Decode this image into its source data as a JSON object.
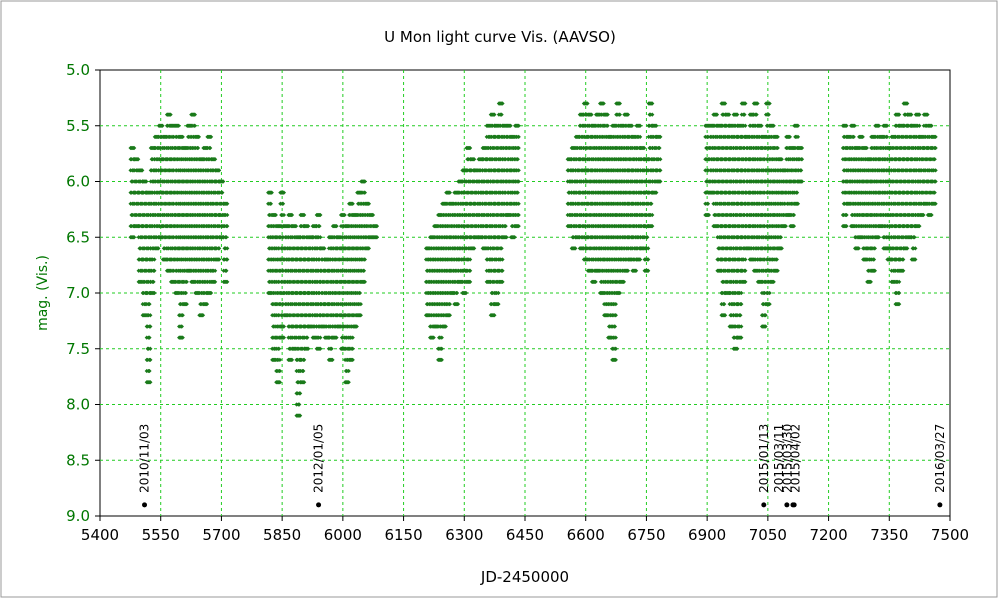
{
  "chart_data": {
    "type": "scatter",
    "title": "U Mon    light curve  Vis. (AAVSO)",
    "xlabel": "JD-2450000",
    "ylabel": "mag. (Vis.)",
    "xlim": [
      5400,
      7500
    ],
    "ylim": [
      5.0,
      9.0
    ],
    "y_inverted": true,
    "x_ticks": [
      5400,
      5550,
      5700,
      5850,
      6000,
      6150,
      6300,
      6450,
      6600,
      6750,
      6900,
      7050,
      7200,
      7350,
      7500
    ],
    "y_ticks": [
      "5.0",
      "5.5",
      "6.0",
      "6.5",
      "7.0",
      "7.5",
      "8.0",
      "8.5",
      "9.0"
    ],
    "grid": true,
    "colors": {
      "points": "#1a7a1a",
      "grid": "#22cc22",
      "events": "#000000",
      "ytext": "#007700"
    },
    "series": [
      {
        "note_columns": [
          "jd",
          "mag_max",
          "mag_min"
        ],
        "columns": [
          [
            5480,
            5.7,
            6.5
          ],
          [
            5490,
            5.8,
            6.4
          ],
          [
            5500,
            5.9,
            6.9
          ],
          [
            5510,
            6.0,
            7.2
          ],
          [
            5520,
            6.1,
            7.8
          ],
          [
            5530,
            5.7,
            7.0
          ],
          [
            5540,
            5.6,
            6.6
          ],
          [
            5550,
            5.5,
            6.5
          ],
          [
            5560,
            5.6,
            6.7
          ],
          [
            5570,
            5.4,
            6.8
          ],
          [
            5580,
            5.5,
            6.9
          ],
          [
            5590,
            5.5,
            7.0
          ],
          [
            5600,
            5.6,
            7.4
          ],
          [
            5610,
            5.7,
            7.1
          ],
          [
            5620,
            5.5,
            6.8
          ],
          [
            5630,
            5.4,
            6.9
          ],
          [
            5640,
            5.6,
            7.0
          ],
          [
            5650,
            5.8,
            7.2
          ],
          [
            5660,
            5.7,
            7.1
          ],
          [
            5670,
            5.6,
            7.0
          ],
          [
            5680,
            5.8,
            6.9
          ],
          [
            5690,
            5.9,
            6.7
          ],
          [
            5700,
            6.0,
            6.5
          ],
          [
            5710,
            6.2,
            6.9
          ],
          [
            5820,
            6.1,
            7.0
          ],
          [
            5830,
            6.3,
            7.6
          ],
          [
            5840,
            6.4,
            7.8
          ],
          [
            5850,
            6.1,
            7.4
          ],
          [
            5860,
            6.4,
            7.2
          ],
          [
            5870,
            6.3,
            7.6
          ],
          [
            5880,
            6.4,
            7.5
          ],
          [
            5890,
            6.5,
            8.1
          ],
          [
            5900,
            6.3,
            7.8
          ],
          [
            5910,
            6.4,
            7.5
          ],
          [
            5920,
            6.5,
            7.3
          ],
          [
            5930,
            6.4,
            7.4
          ],
          [
            5940,
            6.3,
            7.5
          ],
          [
            5950,
            6.6,
            7.3
          ],
          [
            5960,
            6.7,
            7.4
          ],
          [
            5970,
            6.5,
            7.6
          ],
          [
            5980,
            6.4,
            7.4
          ],
          [
            5990,
            6.5,
            7.3
          ],
          [
            6000,
            6.3,
            7.5
          ],
          [
            6010,
            6.4,
            7.8
          ],
          [
            6020,
            6.2,
            7.6
          ],
          [
            6030,
            6.3,
            7.3
          ],
          [
            6040,
            6.1,
            7.2
          ],
          [
            6050,
            6.0,
            6.9
          ],
          [
            6060,
            6.2,
            6.6
          ],
          [
            6070,
            6.3,
            6.5
          ],
          [
            6080,
            6.4,
            6.5
          ],
          [
            6210,
            6.6,
            7.2
          ],
          [
            6220,
            6.5,
            7.4
          ],
          [
            6230,
            6.4,
            7.3
          ],
          [
            6240,
            6.3,
            7.6
          ],
          [
            6250,
            6.2,
            7.3
          ],
          [
            6260,
            6.1,
            7.2
          ],
          [
            6270,
            6.2,
            7.0
          ],
          [
            6280,
            6.1,
            7.1
          ],
          [
            6290,
            6.0,
            6.9
          ],
          [
            6300,
            5.9,
            7.0
          ],
          [
            6310,
            5.7,
            6.9
          ],
          [
            6320,
            5.8,
            6.6
          ],
          [
            6330,
            5.9,
            6.5
          ],
          [
            6340,
            5.8,
            6.5
          ],
          [
            6350,
            5.7,
            6.6
          ],
          [
            6360,
            5.5,
            6.9
          ],
          [
            6370,
            5.4,
            7.2
          ],
          [
            6380,
            5.5,
            7.1
          ],
          [
            6390,
            5.3,
            6.9
          ],
          [
            6400,
            5.5,
            6.5
          ],
          [
            6410,
            5.5,
            6.3
          ],
          [
            6420,
            5.6,
            6.5
          ],
          [
            6430,
            5.5,
            6.4
          ],
          [
            6560,
            5.8,
            6.4
          ],
          [
            6570,
            5.7,
            6.6
          ],
          [
            6580,
            5.6,
            6.5
          ],
          [
            6590,
            5.4,
            6.6
          ],
          [
            6600,
            5.3,
            6.7
          ],
          [
            6610,
            5.4,
            6.8
          ],
          [
            6620,
            5.5,
            6.9
          ],
          [
            6630,
            5.4,
            6.8
          ],
          [
            6640,
            5.3,
            7.0
          ],
          [
            6650,
            5.4,
            7.2
          ],
          [
            6660,
            5.6,
            7.4
          ],
          [
            6670,
            5.5,
            7.6
          ],
          [
            6680,
            5.3,
            7.0
          ],
          [
            6690,
            5.5,
            6.9
          ],
          [
            6700,
            5.4,
            6.8
          ],
          [
            6710,
            5.5,
            6.7
          ],
          [
            6720,
            5.6,
            6.8
          ],
          [
            6730,
            5.5,
            6.7
          ],
          [
            6740,
            5.7,
            6.6
          ],
          [
            6750,
            5.8,
            6.8
          ],
          [
            6760,
            5.3,
            6.4
          ],
          [
            6770,
            5.5,
            6.1
          ],
          [
            6780,
            5.6,
            6.0
          ],
          [
            6900,
            5.5,
            6.3
          ],
          [
            6910,
            5.5,
            6.1
          ],
          [
            6920,
            5.4,
            6.4
          ],
          [
            6930,
            5.5,
            6.8
          ],
          [
            6940,
            5.3,
            7.2
          ],
          [
            6950,
            5.4,
            7.0
          ],
          [
            6960,
            5.5,
            7.3
          ],
          [
            6970,
            5.4,
            7.5
          ],
          [
            6980,
            5.5,
            7.4
          ],
          [
            6990,
            5.3,
            6.9
          ],
          [
            7000,
            5.6,
            6.6
          ],
          [
            7010,
            5.4,
            6.7
          ],
          [
            7020,
            5.3,
            6.8
          ],
          [
            7030,
            5.5,
            6.9
          ],
          [
            7040,
            5.6,
            7.3
          ],
          [
            7050,
            5.3,
            7.1
          ],
          [
            7060,
            5.5,
            6.9
          ],
          [
            7070,
            5.6,
            6.8
          ],
          [
            7080,
            5.8,
            6.6
          ],
          [
            7090,
            5.9,
            6.4
          ],
          [
            7100,
            5.6,
            6.3
          ],
          [
            7110,
            5.7,
            6.4
          ],
          [
            7120,
            5.5,
            6.2
          ],
          [
            7130,
            5.7,
            6.0
          ],
          [
            7240,
            5.5,
            6.4
          ],
          [
            7250,
            5.6,
            6.2
          ],
          [
            7260,
            5.5,
            6.4
          ],
          [
            7270,
            5.7,
            6.6
          ],
          [
            7280,
            5.6,
            6.5
          ],
          [
            7290,
            5.7,
            6.7
          ],
          [
            7300,
            5.8,
            6.9
          ],
          [
            7310,
            5.6,
            6.8
          ],
          [
            7320,
            5.5,
            6.5
          ],
          [
            7330,
            5.6,
            6.4
          ],
          [
            7340,
            5.5,
            6.6
          ],
          [
            7350,
            5.7,
            6.7
          ],
          [
            7360,
            5.6,
            6.9
          ],
          [
            7370,
            5.4,
            7.1
          ],
          [
            7380,
            5.5,
            6.8
          ],
          [
            7390,
            5.3,
            6.6
          ],
          [
            7400,
            5.4,
            6.5
          ],
          [
            7410,
            5.5,
            6.7
          ],
          [
            7420,
            5.4,
            6.4
          ],
          [
            7430,
            5.6,
            6.3
          ],
          [
            7440,
            5.4,
            6.2
          ],
          [
            7450,
            5.5,
            6.3
          ],
          [
            7460,
            5.6,
            6.2
          ]
        ]
      }
    ],
    "annotations": [
      {
        "label": "2010/11/03",
        "jd": 5510,
        "mag": 8.9
      },
      {
        "label": "2012/01/05",
        "jd": 5940,
        "mag": 8.9
      },
      {
        "label": "2015/01/13",
        "jd": 7040,
        "mag": 8.9
      },
      {
        "label": "2015/03/11",
        "jd": 7097,
        "mag": 8.9
      },
      {
        "label": "2015/03/30",
        "jd": 7112,
        "mag": 8.9
      },
      {
        "label": "2015/04/02",
        "jd": 7115,
        "mag": 8.9
      },
      {
        "label": "2016/03/27",
        "jd": 7475,
        "mag": 8.9
      }
    ]
  }
}
